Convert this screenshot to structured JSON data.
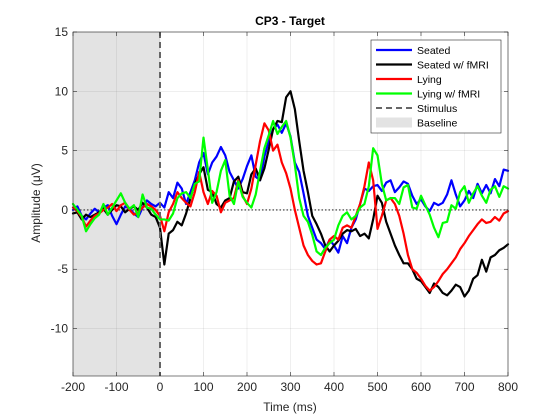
{
  "chart_data": {
    "type": "line",
    "title": "CP3 - Target",
    "xlabel": "Time (ms)",
    "ylabel": "Amplitude (μV)",
    "xlim": [
      -200,
      800
    ],
    "ylim": [
      -14,
      15
    ],
    "xticks": [
      -200,
      -100,
      0,
      100,
      200,
      300,
      400,
      500,
      600,
      700,
      800
    ],
    "yticks": [
      -10,
      -5,
      0,
      5,
      10,
      15
    ],
    "grid": true,
    "legend_position": "top-right",
    "baseline": {
      "label": "Baseline",
      "x_range": [
        -200,
        0
      ],
      "color": "#e3e3e3"
    },
    "stimulus": {
      "label": "Stimulus",
      "x": 0,
      "color": "#666666"
    },
    "zero_line": true,
    "series": [
      {
        "name": "Seated",
        "color": "#0000ff",
        "x": [
          -200,
          -190,
          -180,
          -170,
          -160,
          -150,
          -140,
          -130,
          -120,
          -110,
          -100,
          -90,
          -80,
          -70,
          -60,
          -50,
          -40,
          -30,
          -20,
          -10,
          0,
          10,
          20,
          30,
          40,
          50,
          60,
          70,
          80,
          90,
          100,
          110,
          120,
          130,
          140,
          150,
          160,
          170,
          180,
          190,
          200,
          210,
          220,
          230,
          240,
          250,
          260,
          270,
          280,
          290,
          300,
          310,
          320,
          330,
          340,
          350,
          360,
          370,
          380,
          390,
          400,
          410,
          420,
          430,
          440,
          450,
          460,
          470,
          480,
          490,
          500,
          510,
          520,
          530,
          540,
          550,
          560,
          570,
          580,
          590,
          600,
          610,
          620,
          630,
          640,
          650,
          660,
          670,
          680,
          690,
          700,
          710,
          720,
          730,
          740,
          750,
          760,
          770,
          780,
          790,
          800
        ],
        "y": [
          0,
          0.3,
          -0.5,
          -0.8,
          -0.3,
          0.1,
          -0.2,
          0.2,
          0.4,
          -0.5,
          -1.2,
          -0.4,
          0.3,
          0.1,
          -0.3,
          -0.6,
          0.2,
          0.8,
          0.5,
          0.3,
          0.6,
          0.2,
          1.5,
          1.0,
          2.3,
          1.8,
          0.5,
          1.5,
          2.5,
          4.0,
          4.8,
          3.0,
          4.0,
          4.5,
          5.3,
          4.6,
          3.2,
          2.5,
          1.8,
          2.6,
          3.7,
          4.6,
          2.8,
          2.5,
          4.5,
          5.8,
          6.8,
          7.2,
          6.5,
          7.3,
          6.2,
          4.0,
          3.2,
          1.4,
          -0.5,
          -1.5,
          -2.5,
          -2.8,
          -3.3,
          -2.5,
          -3.0,
          -3.6,
          -2.2,
          -2.8,
          -1.5,
          -0.8,
          0.5,
          1.8,
          1.6,
          2.0,
          2.1,
          1.6,
          2.3,
          2.5,
          1.5,
          1.9,
          2.4,
          2.2,
          1.2,
          0.5,
          0.9,
          0.3,
          -0.1,
          0.6,
          0.4,
          0.6,
          1.3,
          2.5,
          1.3,
          0.3,
          0.8,
          1.6,
          1.0,
          2.2,
          1.4,
          2.1,
          1.4,
          2.6,
          2.0,
          3.4,
          3.3
        ]
      },
      {
        "name": "Seated w/ fMRI",
        "color": "#000000",
        "x": [
          -200,
          -190,
          -180,
          -170,
          -160,
          -150,
          -140,
          -130,
          -120,
          -110,
          -100,
          -90,
          -80,
          -70,
          -60,
          -50,
          -40,
          -30,
          -20,
          -10,
          0,
          10,
          20,
          30,
          40,
          50,
          60,
          70,
          80,
          90,
          100,
          110,
          120,
          130,
          140,
          150,
          160,
          170,
          180,
          190,
          200,
          210,
          220,
          230,
          240,
          250,
          260,
          270,
          280,
          290,
          300,
          310,
          320,
          330,
          340,
          350,
          360,
          370,
          380,
          390,
          400,
          410,
          420,
          430,
          440,
          450,
          460,
          470,
          480,
          490,
          500,
          510,
          520,
          530,
          540,
          550,
          560,
          570,
          580,
          590,
          600,
          610,
          620,
          630,
          640,
          650,
          660,
          670,
          680,
          690,
          700,
          710,
          720,
          730,
          740,
          750,
          760,
          770,
          780,
          790,
          800
        ],
        "y": [
          -0.3,
          -0.2,
          -0.8,
          -0.4,
          -0.6,
          -0.4,
          -0.2,
          0.1,
          -0.4,
          0.0,
          0.4,
          0.3,
          -0.2,
          0.1,
          0.3,
          0.0,
          0.6,
          0.2,
          -0.4,
          -0.6,
          -1.5,
          -4.6,
          -2.0,
          -1.7,
          -1.0,
          -1.3,
          -0.3,
          1.0,
          2.2,
          3.0,
          3.6,
          1.7,
          1.5,
          0.5,
          0.2,
          0.8,
          1.0,
          2.4,
          2.8,
          1.5,
          1.4,
          3.0,
          3.5,
          2.5,
          3.5,
          5.1,
          6.8,
          7.5,
          7.4,
          9.5,
          10.0,
          8.5,
          5.8,
          3.3,
          1.5,
          -0.5,
          -1.2,
          -2.0,
          -3.0,
          -3.5,
          -3.0,
          -2.6,
          -2.0,
          -1.7,
          -1.8,
          -1.6,
          -2.2,
          -2.0,
          -2.4,
          -0.8,
          1.2,
          0.6,
          -1.0,
          -2.0,
          -3.0,
          -3.8,
          -4.5,
          -4.5,
          -5.0,
          -5.8,
          -6.0,
          -6.5,
          -7.0,
          -6.2,
          -6.5,
          -7.0,
          -7.2,
          -6.8,
          -6.3,
          -6.5,
          -7.3,
          -6.8,
          -5.8,
          -5.5,
          -4.2,
          -5.2,
          -4.0,
          -3.8,
          -3.4,
          -3.2,
          -2.9
        ]
      },
      {
        "name": "Lying",
        "color": "#ff0000",
        "x": [
          -200,
          -190,
          -180,
          -170,
          -160,
          -150,
          -140,
          -130,
          -120,
          -110,
          -100,
          -90,
          -80,
          -70,
          -60,
          -50,
          -40,
          -30,
          -20,
          -10,
          0,
          10,
          20,
          30,
          40,
          50,
          60,
          70,
          80,
          90,
          100,
          110,
          120,
          130,
          140,
          150,
          160,
          170,
          180,
          190,
          200,
          210,
          220,
          230,
          240,
          250,
          260,
          270,
          280,
          290,
          300,
          310,
          320,
          330,
          340,
          350,
          360,
          370,
          380,
          390,
          400,
          410,
          420,
          430,
          440,
          450,
          460,
          470,
          480,
          490,
          500,
          510,
          520,
          530,
          540,
          550,
          560,
          570,
          580,
          590,
          600,
          610,
          620,
          630,
          640,
          650,
          660,
          670,
          680,
          690,
          700,
          710,
          720,
          730,
          740,
          750,
          760,
          770,
          780,
          790,
          800
        ],
        "y": [
          0.2,
          -0.1,
          -0.6,
          -1.4,
          -0.9,
          -0.5,
          -0.3,
          0.0,
          0.2,
          0.5,
          -0.1,
          0.4,
          0.6,
          0.0,
          -0.4,
          -0.2,
          0.2,
          0.5,
          0.3,
          0.0,
          -0.5,
          -1.8,
          -0.2,
          0.5,
          1.5,
          1.0,
          0.6,
          0.3,
          1.5,
          3.2,
          1.5,
          0.5,
          1.6,
          1.2,
          -0.2,
          0.6,
          0.8,
          1.0,
          2.5,
          1.2,
          0.5,
          1.8,
          3.8,
          5.8,
          7.3,
          6.7,
          5.0,
          5.5,
          4.0,
          3.1,
          1.8,
          0.0,
          -1.5,
          -3.0,
          -3.8,
          -4.3,
          -4.6,
          -4.5,
          -3.5,
          -2.5,
          -2.2,
          -2.5,
          -1.5,
          -1.3,
          -1.5,
          -0.5,
          0.5,
          2.0,
          4.0,
          2.5,
          -1.6,
          -0.5,
          0.8,
          1.0,
          0.5,
          -0.5,
          -2.0,
          -3.8,
          -5.0,
          -5.3,
          -5.8,
          -6.4,
          -6.8,
          -6.5,
          -6.0,
          -5.4,
          -5.0,
          -4.5,
          -4.0,
          -3.3,
          -2.8,
          -2.2,
          -1.7,
          -1.2,
          -0.8,
          -1.1,
          -1.0,
          -0.6,
          -0.9,
          -0.3,
          -0.1
        ]
      },
      {
        "name": "Lying w/ fMRI",
        "color": "#00ff00",
        "x": [
          -200,
          -190,
          -180,
          -170,
          -160,
          -150,
          -140,
          -130,
          -120,
          -110,
          -100,
          -90,
          -80,
          -70,
          -60,
          -50,
          -40,
          -30,
          -20,
          -10,
          0,
          10,
          20,
          30,
          40,
          50,
          60,
          70,
          80,
          90,
          100,
          110,
          120,
          130,
          140,
          150,
          160,
          170,
          180,
          190,
          200,
          210,
          220,
          230,
          240,
          250,
          260,
          270,
          280,
          290,
          300,
          310,
          320,
          330,
          340,
          350,
          360,
          370,
          380,
          390,
          400,
          410,
          420,
          430,
          440,
          450,
          460,
          470,
          480,
          490,
          500,
          510,
          520,
          530,
          540,
          550,
          560,
          570,
          580,
          590,
          600,
          610,
          620,
          630,
          640,
          650,
          660,
          670,
          680,
          690,
          700,
          710,
          720,
          730,
          740,
          750,
          760,
          770,
          780,
          790,
          800
        ],
        "y": [
          0.5,
          0.0,
          -0.5,
          -1.8,
          -1.2,
          -0.7,
          -0.4,
          0.5,
          -0.4,
          0.2,
          0.8,
          1.4,
          0.6,
          0.1,
          0.4,
          -0.6,
          1.3,
          0.2,
          0.1,
          -0.4,
          -0.8,
          -0.8,
          -0.9,
          -0.3,
          1.0,
          1.4,
          1.5,
          1.0,
          2.2,
          2.4,
          6.1,
          3.4,
          0.6,
          1.5,
          3.3,
          4.2,
          1.2,
          0.5,
          2.4,
          1.1,
          0.6,
          0.2,
          1.3,
          3.3,
          5.2,
          6.3,
          7.5,
          6.4,
          7.0,
          7.5,
          6.1,
          3.8,
          1.0,
          -0.5,
          -1.0,
          -2.1,
          -3.5,
          -3.8,
          -3.2,
          -2.8,
          -2.5,
          -1.3,
          -0.5,
          -0.2,
          -0.8,
          -0.5,
          0.2,
          0.5,
          2.0,
          5.2,
          4.6,
          2.2,
          0.8,
          1.0,
          1.0,
          0.5,
          1.9,
          2.1,
          0.2,
          0.1,
          1.2,
          0.4,
          -0.4,
          -1.5,
          -2.3,
          -1.1,
          -1.0,
          0.4,
          0.1,
          1.5,
          2.0,
          0.6,
          1.4,
          2.0,
          1.2,
          0.6,
          1.7,
          2.0,
          1.1,
          2.0,
          1.8
        ]
      }
    ],
    "legend": [
      {
        "label": "Seated",
        "color": "#0000ff",
        "style": "solid"
      },
      {
        "label": "Seated w/ fMRI",
        "color": "#000000",
        "style": "solid"
      },
      {
        "label": "Lying",
        "color": "#ff0000",
        "style": "solid"
      },
      {
        "label": "Lying w/ fMRI",
        "color": "#00ff00",
        "style": "solid"
      },
      {
        "label": "Stimulus",
        "color": "#666666",
        "style": "dashed"
      },
      {
        "label": "Baseline",
        "color": "#e3e3e3",
        "style": "patch"
      }
    ]
  }
}
